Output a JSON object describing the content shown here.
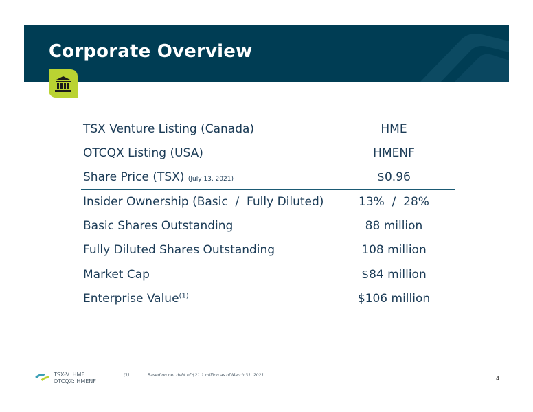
{
  "header": {
    "title": "Corporate Overview"
  },
  "badge": {
    "icon": "bank-icon",
    "color": "#bad332"
  },
  "rows": [
    {
      "label": "TSX Venture Listing (Canada)",
      "value": "HME"
    },
    {
      "label": "OTCQX Listing (USA)",
      "value": "HMENF"
    },
    {
      "label": "Share Price (TSX)",
      "note": "(July 13, 2021)",
      "value": "$0.96"
    },
    {
      "label": "Insider Ownership (Basic  /  Fully Diluted)",
      "value": "13%  /  28%"
    },
    {
      "label": "Basic Shares Outstanding",
      "value": "88 million"
    },
    {
      "label": "Fully Diluted Shares Outstanding",
      "value": "108 million"
    },
    {
      "label": "Market Cap",
      "value": "$84 million"
    },
    {
      "label": "Enterprise Value",
      "sup": "(1)",
      "value": "$106 million"
    }
  ],
  "footer": {
    "ticker_line1": "TSX-V: HME",
    "ticker_line2": "OTCQX: HMENF",
    "footnote_number": "(1)",
    "footnote_text": "Based on net debt of $21.1 million as of March 31, 2021.",
    "page_number": "4"
  },
  "colors": {
    "header_bg": "#003d54",
    "text": "#1b3b56",
    "rule": "#1b5a74"
  }
}
